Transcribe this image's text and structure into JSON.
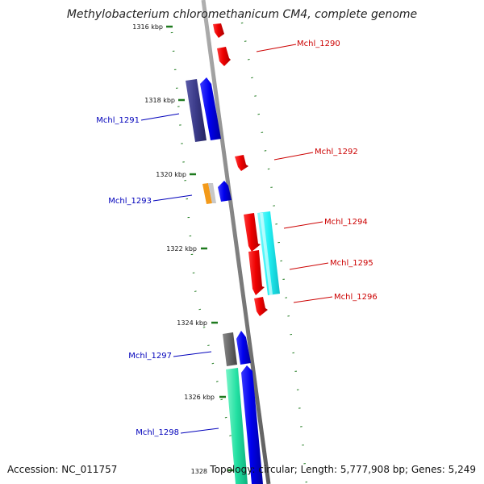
{
  "title": "Methylobacterium chloromethanicum CM4, complete genome",
  "accession_label": "Accession: NC_011757",
  "summary_label": "Topology: circular; Length: 5,777,908 bp; Genes: 5,249",
  "colors": {
    "backbone": "#8f8f8f",
    "tick": "#1e7a1e",
    "forward_label": "#cc0000",
    "reverse_label": "#0000bb"
  },
  "ticks": [
    {
      "label": "1316 kbp",
      "kbp": 1316
    },
    {
      "label": "1318 kbp",
      "kbp": 1318
    },
    {
      "label": "1320 kbp",
      "kbp": 1320
    },
    {
      "label": "1322 kbp",
      "kbp": 1322
    },
    {
      "label": "1324 kbp",
      "kbp": 1324
    },
    {
      "label": "1326 kbp",
      "kbp": 1326
    },
    {
      "label": "1328",
      "kbp": 1328
    }
  ],
  "genes": [
    {
      "id": "Mchl_1290",
      "label": "Mchl_1290",
      "strand": "+",
      "color": "#ee0000"
    },
    {
      "id": "Mchl_1291",
      "label": "Mchl_1291",
      "strand": "-",
      "color": "#0000ee"
    },
    {
      "id": "Mchl_1292",
      "label": "Mchl_1292",
      "strand": "+",
      "color": "#ee0000"
    },
    {
      "id": "Mchl_1293",
      "label": "Mchl_1293",
      "strand": "-",
      "color": "#0000ee"
    },
    {
      "id": "Mchl_1294",
      "label": "Mchl_1294",
      "strand": "+",
      "color": "#ee0000"
    },
    {
      "id": "Mchl_1295",
      "label": "Mchl_1295",
      "strand": "+",
      "color": "#ee0000"
    },
    {
      "id": "Mchl_1296",
      "label": "Mchl_1296",
      "strand": "+",
      "color": "#ee0000"
    },
    {
      "id": "Mchl_1297",
      "label": "Mchl_1297",
      "strand": "-",
      "color": "#0000ee"
    },
    {
      "id": "Mchl_1298",
      "label": "Mchl_1298",
      "strand": "-",
      "color": "#0000ee"
    }
  ]
}
